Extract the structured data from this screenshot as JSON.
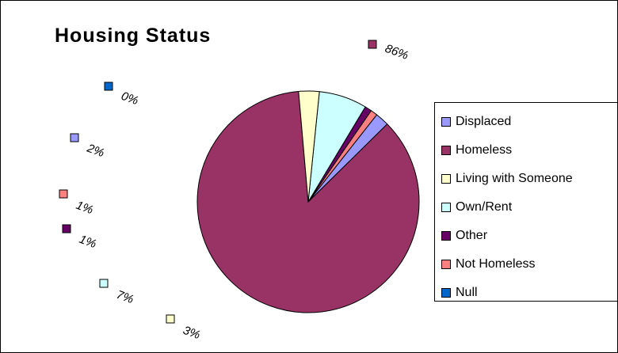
{
  "chart_data": {
    "type": "pie",
    "title": "Housing Status",
    "slices": [
      {
        "label": "Displaced",
        "value": 2,
        "display": "2%",
        "color": "#9999FF"
      },
      {
        "label": "Homeless",
        "value": 86,
        "display": "86%",
        "color": "#993366"
      },
      {
        "label": "Living with Someone",
        "value": 3,
        "display": "3%",
        "color": "#FFFFCC"
      },
      {
        "label": "Own/Rent",
        "value": 7,
        "display": "7%",
        "color": "#CCFFFF"
      },
      {
        "label": "Other",
        "value": 1,
        "display": "1%",
        "color": "#660066"
      },
      {
        "label": "Not Homeless",
        "value": 1,
        "display": "1%",
        "color": "#FF8080"
      },
      {
        "label": "Null",
        "value": 0,
        "display": "0%",
        "color": "#0066CC"
      }
    ],
    "legend_position": "right"
  }
}
